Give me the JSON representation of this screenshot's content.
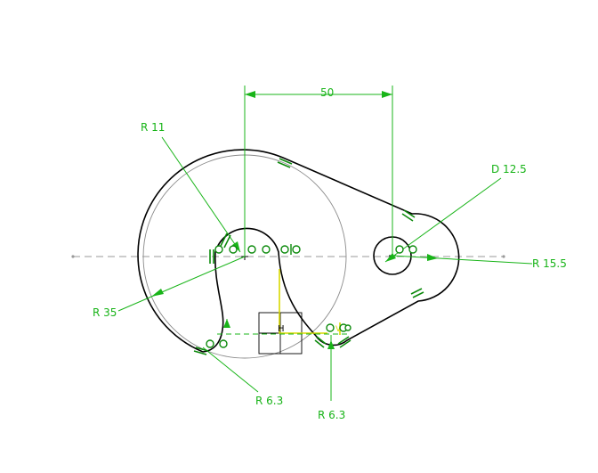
{
  "colors": {
    "dimension": "#18b418",
    "geometry": "#000000",
    "construction": "#8a8a8a",
    "axis": "#9a9a9a",
    "constraint": "#0c8a0c",
    "highlight": "#d8d800"
  },
  "dimensions": {
    "distance": "50",
    "r11": "R 11",
    "d12": "D 12.5",
    "r155": "R 15.5",
    "r35": "R 35",
    "r63_left": "R 6.3",
    "r63_bottom": "R 6.3"
  },
  "symbols": {
    "horizontal_left": "H",
    "vertical_right": "V"
  }
}
